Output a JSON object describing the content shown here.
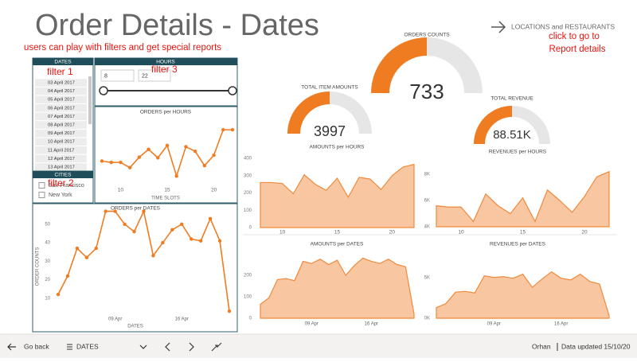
{
  "header": {
    "title": "Order Details - Dates",
    "annotation": "users can play with filters and get special reports",
    "link": "LOCATIONS and RESTAURANTS",
    "link_note": [
      "click to go to",
      "Report details"
    ]
  },
  "filters": {
    "dates": {
      "title": "DATES",
      "note": "filter 1",
      "items": [
        "03 April 2017",
        "04 April 2017",
        "05 April 2017",
        "06 April 2017",
        "07 April 2017",
        "08 April 2017",
        "09 April 2017",
        "10 April 2017",
        "11 April 2017",
        "12 April 2017",
        "13 April 2017"
      ]
    },
    "hours": {
      "title": "HOURS",
      "note": "filter 3",
      "from": "8",
      "to": "22"
    },
    "cities": {
      "title": "CITIES",
      "note": "filter 2",
      "items": [
        "San Francisco",
        "New York"
      ]
    }
  },
  "gauges": [
    {
      "title": "TOTAL ITEM AMOUNTS",
      "value": 3997,
      "range": [
        0,
        7994
      ]
    },
    {
      "title": "ORDERS COUNTS",
      "value": 733,
      "range": [
        0,
        1466
      ]
    },
    {
      "title": "TOTAL REVENUE",
      "value": 88510,
      "value_label": "88.51K",
      "range": [
        0,
        177020
      ]
    }
  ],
  "charts": [
    {
      "type": "line",
      "title": "ORDERS per HOURS",
      "x_label": "TIME SLOTS",
      "color": "#f07c21",
      "x": [
        8,
        9,
        10,
        11,
        12,
        13,
        14,
        15,
        16,
        17,
        18,
        19,
        20,
        21,
        22
      ],
      "values": [
        36,
        34,
        34,
        26,
        42,
        54,
        41,
        60,
        13,
        58,
        51,
        29,
        45,
        84,
        84
      ],
      "xlim": [
        8,
        22
      ],
      "xticks": [
        10,
        15,
        20
      ],
      "ylim": [
        0,
        100
      ]
    },
    {
      "type": "line",
      "title": "ORDERS per DATES",
      "x_label": "DATES",
      "y_label": "ORDER COUNTS",
      "color": "#f07c21",
      "categories": [
        null,
        null,
        null,
        null,
        null,
        null,
        "09 Apr",
        null,
        null,
        null,
        null,
        null,
        null,
        "16 Apr",
        null,
        null,
        null,
        null,
        null
      ],
      "values": [
        12,
        22,
        37,
        32,
        37,
        57,
        57,
        50,
        46,
        57,
        33,
        40,
        47,
        50,
        42,
        41,
        53,
        41,
        3
      ],
      "ylim": [
        0,
        60
      ],
      "yticks": [
        10,
        20,
        30,
        40,
        50
      ]
    },
    {
      "type": "area",
      "title": "AMOUNTS per HOURS",
      "color": "#f08a3a",
      "x": [
        8,
        9,
        10,
        11,
        12,
        13,
        14,
        15,
        16,
        17,
        18,
        19,
        20,
        21,
        22
      ],
      "values": [
        260,
        260,
        255,
        195,
        305,
        250,
        215,
        285,
        175,
        290,
        280,
        220,
        300,
        350,
        365
      ],
      "xlim": [
        8,
        22
      ],
      "xticks": [
        10,
        15,
        20
      ],
      "ylim": [
        0,
        400
      ],
      "yticks": [
        0,
        100,
        200,
        300,
        400
      ]
    },
    {
      "type": "area",
      "title": "REVENUES per HOURS",
      "color": "#f08a3a",
      "x": [
        8,
        9,
        10,
        11,
        12,
        13,
        14,
        15,
        16,
        17,
        18,
        19,
        20,
        21,
        22
      ],
      "values": [
        5600,
        5500,
        5500,
        4400,
        6500,
        5600,
        5000,
        6200,
        4400,
        6800,
        6000,
        5100,
        6300,
        7800,
        8200
      ],
      "xlim": [
        8,
        22
      ],
      "xticks": [
        10,
        15,
        20
      ],
      "ylim": [
        4000,
        8400
      ],
      "yticks": [
        {
          "value": 4000,
          "label": "4K"
        },
        {
          "value": 6000,
          "label": "6K"
        },
        {
          "value": 8000,
          "label": "8K"
        }
      ]
    },
    {
      "type": "area",
      "title": "AMOUNTS per DATES",
      "color": "#f08a3a",
      "categories": [
        null,
        null,
        null,
        null,
        null,
        null,
        "09 Apr",
        null,
        null,
        null,
        null,
        null,
        null,
        "16 Apr",
        null,
        null,
        null,
        null,
        null
      ],
      "values": [
        65,
        95,
        180,
        185,
        175,
        265,
        255,
        275,
        250,
        270,
        200,
        245,
        280,
        265,
        255,
        275,
        250,
        240,
        20
      ],
      "ylim": [
        0,
        300
      ],
      "yticks": [
        0,
        100,
        200
      ]
    },
    {
      "type": "area",
      "title": "REVENUES per DATES",
      "color": "#f08a3a",
      "categories": [
        null,
        null,
        null,
        null,
        null,
        null,
        "09 Apr",
        null,
        null,
        null,
        null,
        null,
        null,
        "16 Apr",
        null,
        null,
        null,
        null,
        null
      ],
      "values": [
        1300,
        1800,
        3200,
        3300,
        3100,
        5200,
        5000,
        5100,
        4900,
        5400,
        3800,
        4800,
        5700,
        4900,
        4700,
        5400,
        4500,
        4200,
        300
      ],
      "ylim": [
        0,
        8000
      ],
      "yticks": [
        {
          "value": 0,
          "label": "0K"
        },
        {
          "value": 5000,
          "label": "5K"
        }
      ]
    }
  ],
  "footer": {
    "back": "Go back",
    "page": "DATES",
    "user": "Orhan",
    "updated": "Data updated 15/10/20"
  }
}
